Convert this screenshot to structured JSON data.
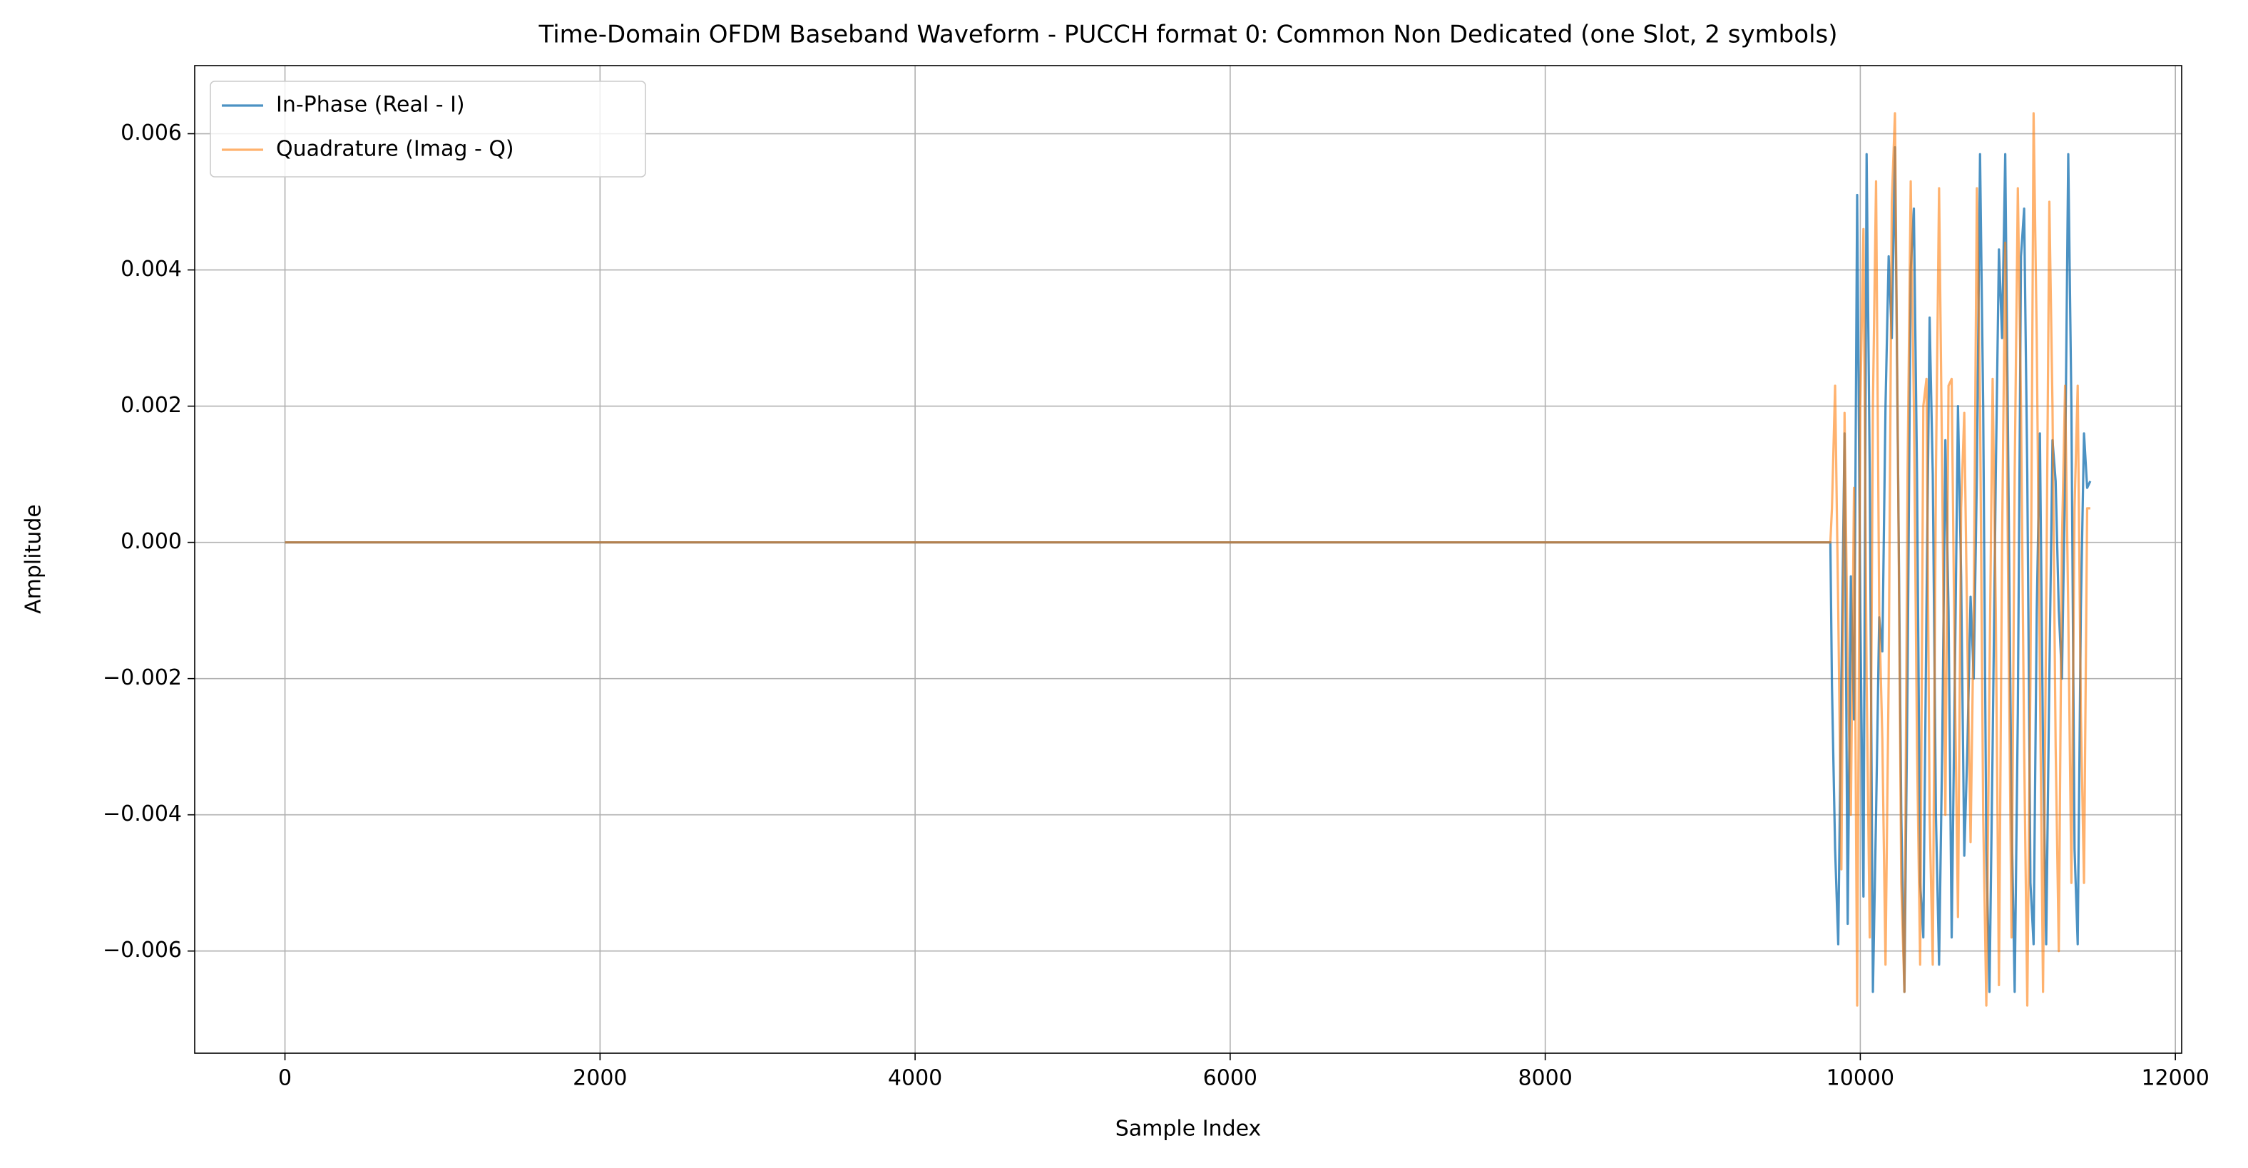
{
  "chart_data": {
    "type": "line",
    "title": "Time-Domain OFDM Baseband Waveform - PUCCH format 0: Common Non Dedicated (one Slot, 2 symbols)",
    "x_label": "Sample Index",
    "y_label": "Amplitude",
    "xlim": [
      -573,
      12040
    ],
    "ylim": [
      -0.0075,
      0.007
    ],
    "xticks": [
      0,
      2000,
      4000,
      6000,
      8000,
      10000,
      12000
    ],
    "yticks": [
      {
        "value": -0.006,
        "label": "−0.006"
      },
      {
        "value": -0.004,
        "label": "−0.004"
      },
      {
        "value": -0.002,
        "label": "−0.002"
      },
      {
        "value": 0,
        "label": "0.000"
      },
      0.002,
      0.004,
      0.006
    ],
    "grid": true,
    "legend": "upper left",
    "x": [
      0,
      9810,
      9820,
      9840,
      9860,
      9880,
      9900,
      9920,
      9940,
      9960,
      9980,
      10000,
      10020,
      10040,
      10060,
      10080,
      10100,
      10120,
      10140,
      10160,
      10180,
      10200,
      10220,
      10240,
      10260,
      10280,
      10300,
      10320,
      10340,
      10360,
      10380,
      10400,
      10420,
      10440,
      10460,
      10480,
      10500,
      10520,
      10540,
      10560,
      10580,
      10600,
      10620,
      10640,
      10660,
      10680,
      10700,
      10720,
      10740,
      10760,
      10780,
      10800,
      10820,
      10840,
      10860,
      10880,
      10900,
      10920,
      10940,
      10960,
      10980,
      11000,
      11020,
      11040,
      11060,
      11080,
      11100,
      11120,
      11140,
      11160,
      11180,
      11200,
      11220,
      11240,
      11260,
      11280,
      11300,
      11320,
      11340,
      11360,
      11380,
      11400,
      11420,
      11440,
      11460
    ],
    "series": [
      {
        "name": "In-Phase (Real - I)",
        "color": "#1f77b4",
        "opacity": 0.8,
        "values": [
          0,
          0,
          -0.0021,
          -0.0045,
          -0.0059,
          -0.002,
          0.0016,
          -0.0056,
          -0.0005,
          -0.0026,
          0.0051,
          -0.001,
          -0.0052,
          0.0057,
          0.001,
          -0.0066,
          -0.004,
          -0.0011,
          -0.0016,
          0.002,
          0.0042,
          0.003,
          0.0058,
          0.001,
          -0.004,
          -0.0066,
          -0.002,
          0.004,
          0.0049,
          0.001,
          -0.005,
          -0.0058,
          -0.001,
          0.0033,
          0.001,
          -0.004,
          -0.0062,
          -0.003,
          0.0015,
          -0.001,
          -0.0058,
          -0.002,
          0.002,
          -0.0005,
          -0.0046,
          -0.003,
          -0.0008,
          -0.002,
          0.001,
          0.0057,
          0.002,
          -0.0045,
          -0.0066,
          -0.003,
          0.001,
          0.0043,
          0.003,
          0.0057,
          0.001,
          -0.004,
          -0.0066,
          -0.0025,
          0.0042,
          0.0049,
          0.001,
          -0.005,
          -0.0059,
          -0.001,
          0.0016,
          -0.003,
          -0.0059,
          -0.002,
          0.0015,
          0.0009,
          -0.001,
          -0.002,
          0.001,
          0.0057,
          0.002,
          -0.0045,
          -0.0059,
          -0.001,
          0.0016,
          0.0008,
          0.0009
        ]
      },
      {
        "name": "Quadrature (Imag - Q)",
        "color": "#ff7f0e",
        "opacity": 0.6,
        "values": [
          0,
          0,
          0.0005,
          0.0023,
          -0.001,
          -0.0048,
          0.0019,
          -0.0018,
          -0.004,
          0.0008,
          -0.0068,
          0.002,
          0.0046,
          -0.002,
          -0.0058,
          0.002,
          0.0053,
          -0.001,
          -0.0029,
          -0.0062,
          -0.002,
          0.005,
          0.0063,
          0.001,
          -0.005,
          -0.0066,
          0.001,
          0.0053,
          0.002,
          -0.003,
          -0.0062,
          0.002,
          0.0024,
          -0.004,
          -0.0062,
          0.001,
          0.0052,
          0.001,
          -0.004,
          0.0023,
          0.0024,
          -0.002,
          -0.0055,
          0.0005,
          0.0019,
          -0.0015,
          -0.0044,
          -0.001,
          0.0052,
          0.002,
          -0.004,
          -0.0068,
          -0.002,
          0.0024,
          -0.001,
          -0.0065,
          0.0,
          0.0044,
          -0.001,
          -0.0058,
          0.001,
          0.0052,
          0.002,
          -0.003,
          -0.0068,
          -0.002,
          0.0063,
          0.003,
          -0.002,
          -0.0066,
          -0.001,
          0.005,
          0.002,
          -0.003,
          -0.006,
          0.0,
          0.0023,
          -0.001,
          -0.005,
          0.0005,
          0.0023,
          -0.0025,
          -0.005,
          0.0005,
          0.0005
        ]
      }
    ]
  }
}
